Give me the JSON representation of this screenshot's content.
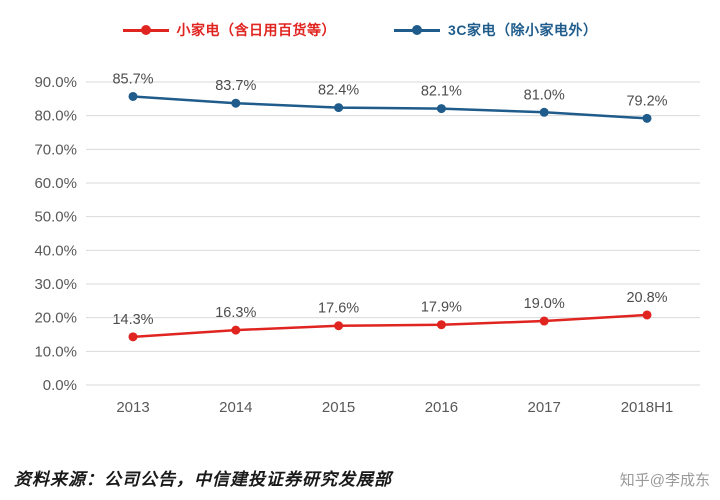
{
  "chart_data": {
    "type": "line",
    "categories": [
      "2013",
      "2014",
      "2015",
      "2016",
      "2017",
      "2018H1"
    ],
    "series": [
      {
        "name": "小家电（含日用百货等）",
        "color": "#e02420",
        "values": [
          14.3,
          16.3,
          17.6,
          17.9,
          19.0,
          20.8
        ]
      },
      {
        "name": "3C家电（除小家电外）",
        "color": "#1f5c8b",
        "values": [
          85.7,
          83.7,
          82.4,
          82.1,
          81.0,
          79.2
        ]
      }
    ],
    "title": "",
    "xlabel": "",
    "ylabel": "",
    "ylim": [
      0,
      90
    ],
    "ytick_step": 10,
    "ytick_format": "one-decimal-percent",
    "grid": true,
    "legend_position": "top",
    "gridline_color": "#d9d9d9",
    "tick_label_color": "#595959",
    "data_label_color": "#4d4d4d"
  },
  "footer": {
    "source": "资料来源：公司公告，中信建投证券研究发展部",
    "watermark": "知乎@李成东"
  }
}
